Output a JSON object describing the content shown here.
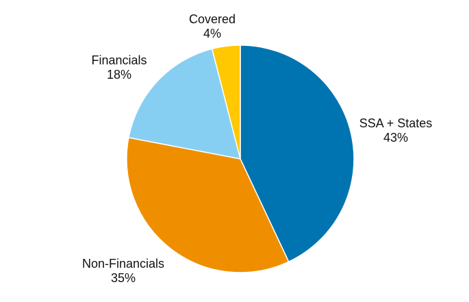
{
  "chart_data": {
    "type": "pie",
    "slices": [
      {
        "label": "SSA + States",
        "value": 43,
        "value_label": "43%",
        "color": "#0074B0"
      },
      {
        "label": "Non-Financials",
        "value": 35,
        "value_label": "35%",
        "color": "#EF8F00"
      },
      {
        "label": "Financials",
        "value": 18,
        "value_label": "18%",
        "color": "#87CEF3"
      },
      {
        "label": "Covered",
        "value": 4,
        "value_label": "4%",
        "color": "#FFC800"
      }
    ],
    "start": "12 o'clock",
    "direction": "clockwise",
    "legend": "none"
  }
}
